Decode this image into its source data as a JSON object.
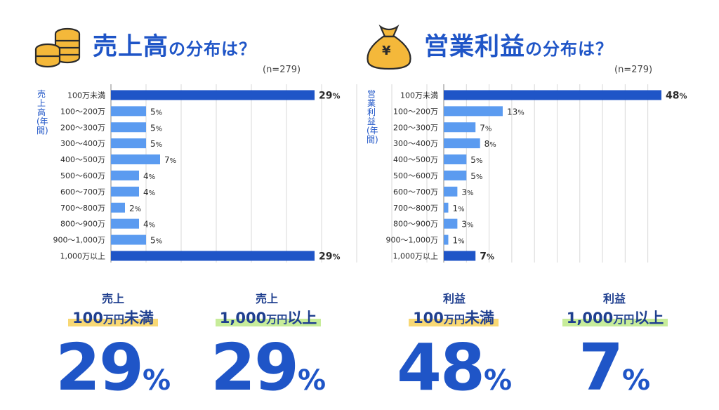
{
  "left": {
    "title_main": "売上高",
    "title_rest": "の分布は？",
    "n": "(n=279)",
    "ylabel": "売上高(年間)"
  },
  "right": {
    "title_main": "営業利益",
    "title_rest": "の分布は？",
    "n": "(n=279)",
    "ylabel": "営業利益(年間)"
  },
  "colors": {
    "highlight": "#1f55c7",
    "bar": "#5b9bf0",
    "yellow_marker": "#f8d874",
    "green_marker": "#c7ec9a",
    "coin": "#f4b83a",
    "bag": "#f4b83a"
  },
  "icons": {
    "left": "coins-icon",
    "right": "money-bag-icon",
    "yen": "¥"
  },
  "chart_data": [
    {
      "type": "bar",
      "orientation": "horizontal",
      "categories": [
        "100万未満",
        "100〜200万",
        "200〜300万",
        "300〜400万",
        "400〜500万",
        "500〜600万",
        "600〜700万",
        "700〜800万",
        "800〜900万",
        "900〜1,000万",
        "1,000万以上"
      ],
      "values": [
        29,
        5,
        5,
        5,
        7,
        4,
        4,
        2,
        4,
        5,
        29
      ],
      "highlighted": [
        0,
        10
      ],
      "unit": "%",
      "ylabel": "売上高(年間)",
      "title": "売上高の分布は？"
    },
    {
      "type": "bar",
      "orientation": "horizontal",
      "categories": [
        "100万未満",
        "100〜200万",
        "200〜300万",
        "300〜400万",
        "400〜500万",
        "500〜600万",
        "600〜700万",
        "700〜800万",
        "800〜900万",
        "900〜1,000万",
        "1,000万以上"
      ],
      "values": [
        48,
        13,
        7,
        8,
        5,
        5,
        3,
        1,
        3,
        1,
        7
      ],
      "highlighted": [
        0,
        10
      ],
      "unit": "%",
      "ylabel": "営業利益(年間)",
      "title": "営業利益の分布は？"
    }
  ],
  "kpis": [
    {
      "caption": "売上",
      "amount": "100",
      "unit_small": "万円",
      "suffix": "未満",
      "marker": "yellow",
      "value": "29",
      "pct": "%"
    },
    {
      "caption": "売上",
      "amount": "1,000",
      "unit_small": "万円",
      "suffix": "以上",
      "marker": "green",
      "value": "29",
      "pct": "%"
    },
    {
      "caption": "利益",
      "amount": "100",
      "unit_small": "万円",
      "suffix": "未満",
      "marker": "yellow",
      "value": "48",
      "pct": "%"
    },
    {
      "caption": "利益",
      "amount": "1,000",
      "unit_small": "万円",
      "suffix": "以上",
      "marker": "green",
      "value": "7",
      "pct": "%"
    }
  ]
}
